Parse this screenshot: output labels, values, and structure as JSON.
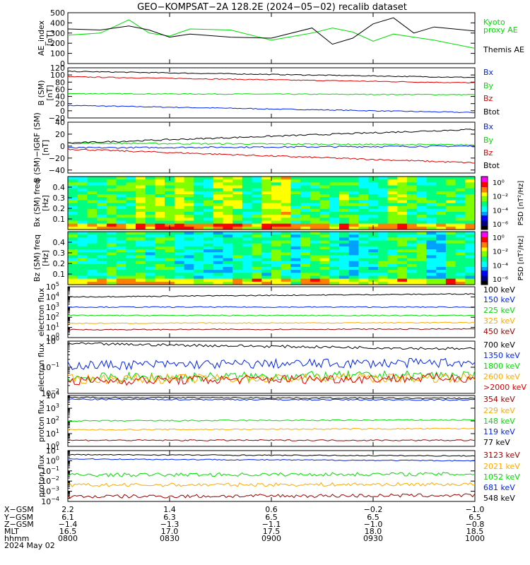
{
  "title": "GEO−KOMPSAT−2A 128.2E (2024−05−02) recalib dataset",
  "footer": {
    "rows": [
      "X−GSM",
      "Y−GSM",
      "Z−GSM",
      "MLT",
      "hhmm",
      "2024 May 02"
    ],
    "columns": [
      {
        "x": "2.2",
        "y": "6.1",
        "z": "−1.4",
        "mlt": "16.5",
        "hhmm": "0800"
      },
      {
        "x": "1.4",
        "y": "6.3",
        "z": "−1.3",
        "mlt": "17.0",
        "hhmm": "0830"
      },
      {
        "x": "0.6",
        "y": "6.5",
        "z": "−1.1",
        "mlt": "17.5",
        "hhmm": "0900"
      },
      {
        "x": "−0.2",
        "y": "6.5",
        "z": "−1.0",
        "mlt": "18.0",
        "hhmm": "0930"
      },
      {
        "x": "−1.0",
        "y": "6.5",
        "z": "−0.8",
        "mlt": "18.5",
        "hhmm": "1000"
      }
    ]
  },
  "colorbar_labels": {
    "ticks": [
      "10⁰",
      "10⁻²",
      "10⁻⁴",
      "10⁻⁶"
    ],
    "label": "PSD [nT²/Hz]"
  },
  "colors": {
    "black": "#000000",
    "blue": "#0022ee",
    "green": "#00dd00",
    "red": "#dd0000",
    "orange": "#ffaa00",
    "darkred": "#990000"
  },
  "chart_data": [
    {
      "type": "line",
      "ylabel": "AE_index [nT]",
      "ylim": [
        0,
        500
      ],
      "yticks": [
        "500",
        "400",
        "300",
        "200",
        "100",
        "0"
      ],
      "x": [
        0,
        0.08,
        0.15,
        0.2,
        0.25,
        0.3,
        0.4,
        0.5,
        0.6,
        0.65,
        0.7,
        0.75,
        0.8,
        0.85,
        0.9,
        1.0
      ],
      "series": [
        {
          "name": "Kyoto\nproxy AE",
          "color": "green",
          "values": [
            280,
            300,
            430,
            300,
            270,
            340,
            330,
            230,
            300,
            350,
            310,
            220,
            290,
            260,
            230,
            150
          ]
        },
        {
          "name": "Themis AE",
          "color": "black",
          "values": [
            340,
            330,
            370,
            330,
            260,
            290,
            260,
            250,
            350,
            190,
            250,
            390,
            450,
            300,
            360,
            320
          ]
        }
      ]
    },
    {
      "type": "line",
      "ylabel": "B (SM) [nT]",
      "ylim": [
        -20,
        120
      ],
      "yticks": [
        "120",
        "100",
        "80",
        "60",
        "40",
        "20",
        "0",
        "−20"
      ],
      "series": [
        {
          "name": "Bx",
          "color": "blue",
          "start": 15,
          "end": -5
        },
        {
          "name": "By",
          "color": "green",
          "start": 48,
          "end": 45
        },
        {
          "name": "Bz",
          "color": "red",
          "start": 95,
          "end": 78
        },
        {
          "name": "Btot",
          "color": "black",
          "start": 110,
          "end": 93
        }
      ]
    },
    {
      "type": "line",
      "ylabel": "B (SM)−IGRF (SM) [nT]",
      "ylim": [
        -45,
        40
      ],
      "yticks": [
        "40",
        "20",
        "0",
        "−20",
        "−40"
      ],
      "series": [
        {
          "name": "Bx",
          "color": "blue",
          "start": -3,
          "end": 0
        },
        {
          "name": "By",
          "color": "green",
          "start": 5,
          "end": 2
        },
        {
          "name": "Bz",
          "color": "red",
          "start": -5,
          "end": -28
        },
        {
          "name": "Btot",
          "color": "black",
          "start": 5,
          "end": 28
        }
      ]
    },
    {
      "type": "heatmap",
      "ylabel": "Bx (SM) freq [Hz]",
      "yticks": [
        "0.4",
        "0.3",
        "0.2",
        "0.1"
      ],
      "ylim": [
        0,
        0.5
      ]
    },
    {
      "type": "heatmap",
      "ylabel": "Bz (SM) freq [Hz]",
      "yticks": [
        "0.4",
        "0.3",
        "0.2",
        "0.1"
      ],
      "ylim": [
        0,
        0.5
      ]
    },
    {
      "type": "line",
      "ylabel": "electron flux",
      "scale": "log",
      "ylim": [
        1,
        100000
      ],
      "series": [
        {
          "name": "100 keV",
          "color": "black",
          "start": 10000,
          "end": 20000
        },
        {
          "name": "150 keV",
          "color": "blue",
          "start": 1000,
          "end": 1000
        },
        {
          "name": "225 keV",
          "color": "green",
          "start": 150,
          "end": 150
        },
        {
          "name": "325 keV",
          "color": "orange",
          "start": 25,
          "end": 30
        },
        {
          "name": "450 keV",
          "color": "darkred",
          "start": 6,
          "end": 7
        }
      ]
    },
    {
      "type": "line",
      "ylabel": "electron flux",
      "scale": "log",
      "ylim": [
        0.01,
        1
      ],
      "series": [
        {
          "name": "700 keV",
          "color": "black",
          "start": 0.8,
          "end": 0.5
        },
        {
          "name": "1350 keV",
          "color": "blue",
          "start": 0.12,
          "end": 0.15
        },
        {
          "name": "1800 keV",
          "color": "green",
          "start": 0.04,
          "end": 0.05
        },
        {
          "name": "2600 keV",
          "color": "orange",
          "start": 0.035,
          "end": 0.04
        },
        {
          "name": ">2000 keV",
          "color": "red",
          "start": 0.03,
          "end": 0.04
        }
      ]
    },
    {
      "type": "line",
      "ylabel": "proton flux",
      "scale": "log",
      "ylim": [
        1,
        10000
      ],
      "series": [
        {
          "name": "354 keV",
          "color": "darkred",
          "start": 3,
          "end": 3
        },
        {
          "name": "229 keV",
          "color": "orange",
          "start": 20,
          "end": 25
        },
        {
          "name": "148 keV",
          "color": "green",
          "start": 100,
          "end": 120
        },
        {
          "name": "119 keV",
          "color": "blue",
          "start": 5000,
          "end": 4500
        },
        {
          "name": "77 keV",
          "color": "black",
          "start": 7000,
          "end": 6000
        }
      ]
    },
    {
      "type": "line",
      "ylabel": "proton flux",
      "scale": "log",
      "ylim": [
        0.0001,
        10
      ],
      "series": [
        {
          "name": "3123 keV",
          "color": "darkred",
          "start": 0.0003,
          "end": 0.0004
        },
        {
          "name": "2021 keV",
          "color": "orange",
          "start": 0.004,
          "end": 0.005
        },
        {
          "name": "1052 keV",
          "color": "green",
          "start": 0.04,
          "end": 0.05
        },
        {
          "name": "681 keV",
          "color": "blue",
          "start": 1.5,
          "end": 1.0
        },
        {
          "name": "548 keV",
          "color": "black",
          "start": 4,
          "end": 3
        }
      ]
    }
  ]
}
